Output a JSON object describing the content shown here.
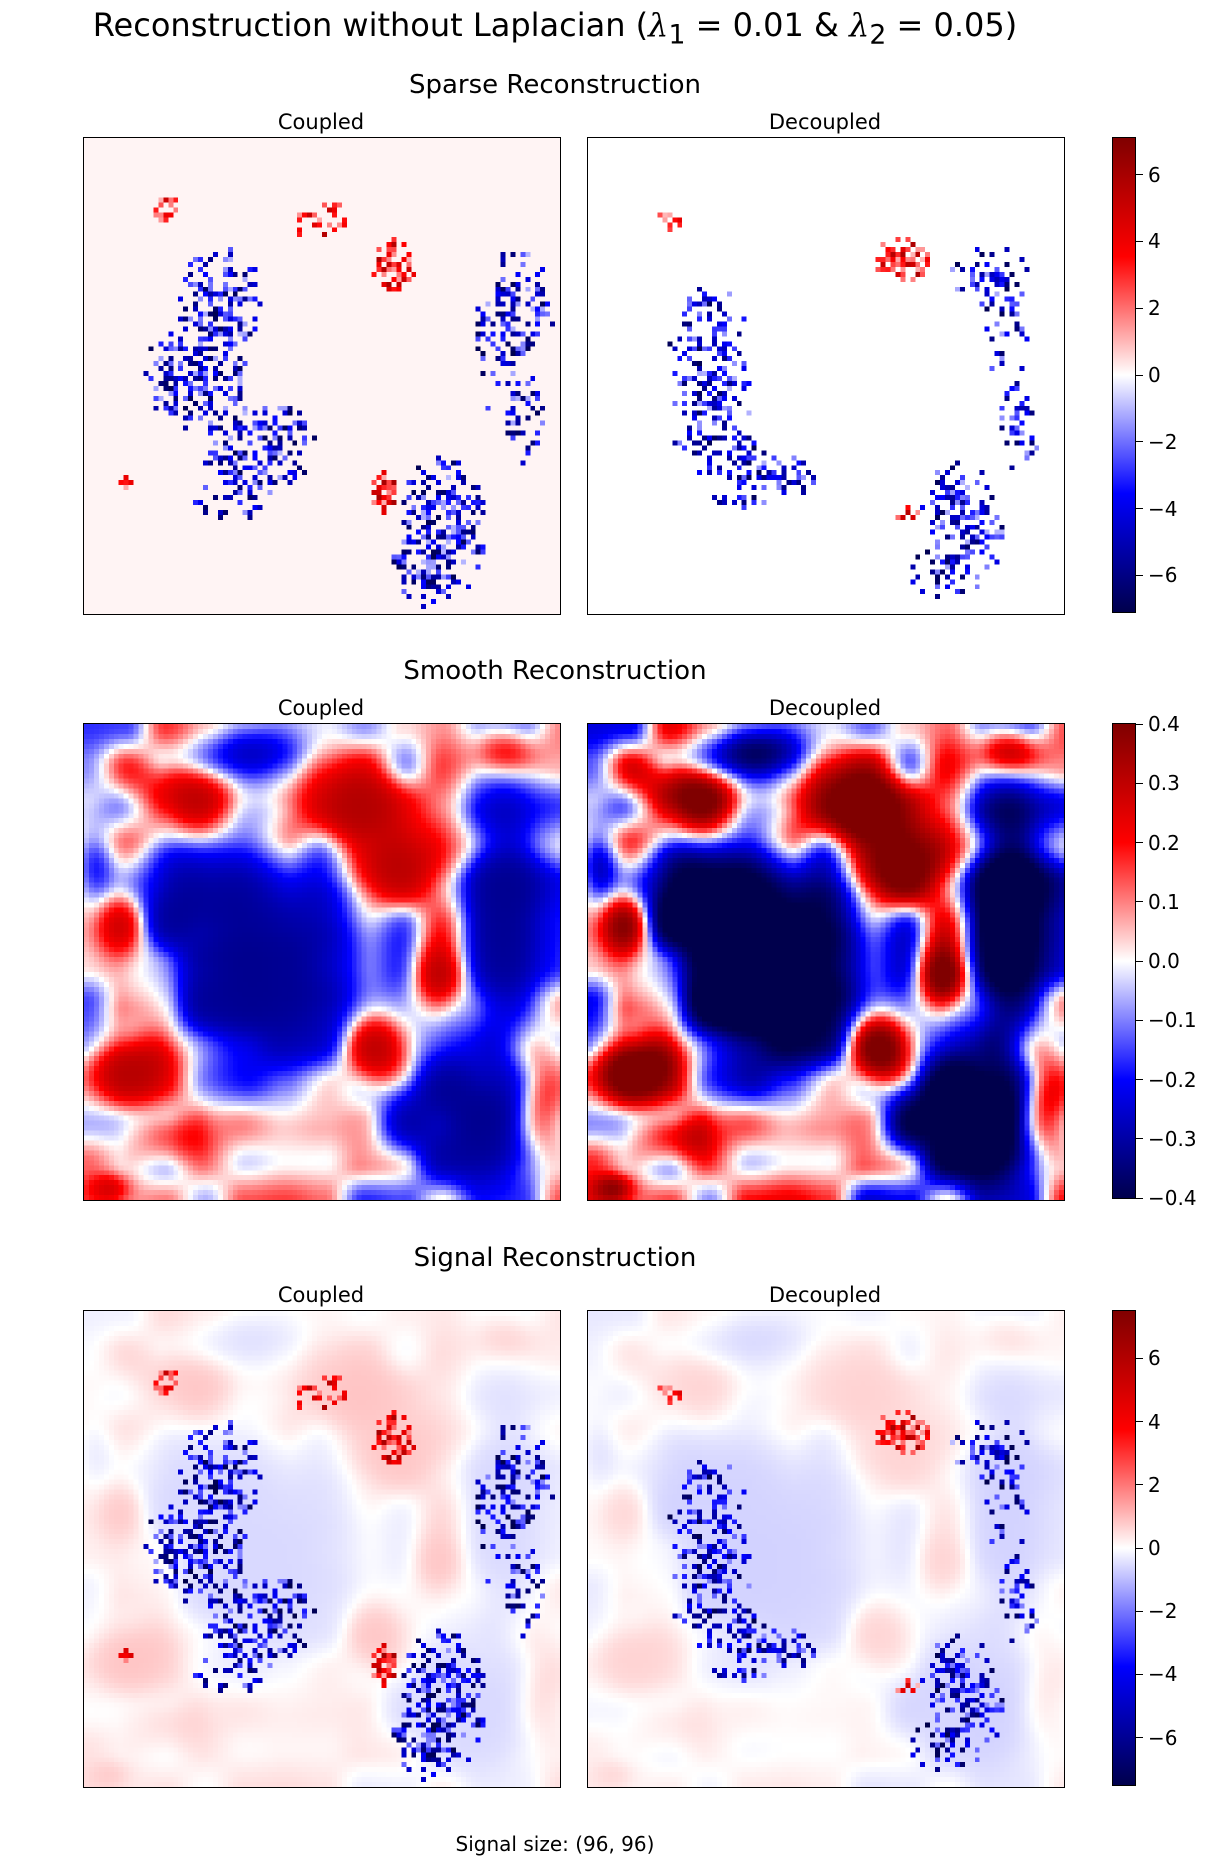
{
  "figure": {
    "title_prefix": "Reconstruction without Laplacian (",
    "title_l1": "λ",
    "title_sub1": "1",
    "title_eq1": " = 0.01 & ",
    "title_l2": "λ",
    "title_sub2": "2",
    "title_eq2": " = 0.05)",
    "footer": "Signal size: (96, 96)"
  },
  "colormap": "seismic",
  "chart_data": [
    {
      "type": "heatmap",
      "title": "Sparse Reconstruction",
      "panels": [
        "Coupled",
        "Decoupled"
      ],
      "grid_size": [
        96,
        96
      ],
      "colorbar": {
        "vmin": -7.1,
        "vmax": 7.1,
        "ticks": [
          6,
          4,
          2,
          0,
          -2,
          -4,
          -6
        ],
        "tick_labels": [
          "6",
          "4",
          "2",
          "0",
          "−2",
          "−4",
          "−6"
        ]
      }
    },
    {
      "type": "heatmap",
      "title": "Smooth Reconstruction",
      "panels": [
        "Coupled",
        "Decoupled"
      ],
      "grid_size": [
        96,
        96
      ],
      "colorbar": {
        "vmin": -0.4,
        "vmax": 0.4,
        "ticks": [
          0.4,
          0.3,
          0.2,
          0.1,
          0.0,
          -0.1,
          -0.2,
          -0.3,
          -0.4
        ],
        "tick_labels": [
          "0.4",
          "0.3",
          "0.2",
          "0.1",
          "0.0",
          "−0.1",
          "−0.2",
          "−0.3",
          "−0.4"
        ]
      }
    },
    {
      "type": "heatmap",
      "title": "Signal Reconstruction",
      "panels": [
        "Coupled",
        "Decoupled"
      ],
      "grid_size": [
        96,
        96
      ],
      "colorbar": {
        "vmin": -7.5,
        "vmax": 7.5,
        "ticks": [
          6,
          4,
          2,
          0,
          -2,
          -4,
          -6
        ],
        "tick_labels": [
          "6",
          "4",
          "2",
          "0",
          "−2",
          "−4",
          "−6"
        ]
      }
    }
  ]
}
